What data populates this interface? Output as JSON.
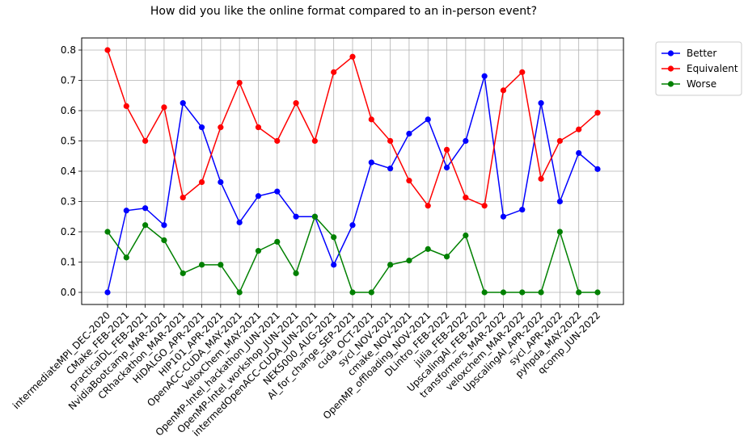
{
  "chart_data": {
    "type": "line",
    "title": "How did you like the online format compared to an in-person event?",
    "xlabel": "",
    "ylabel": "",
    "ylim": [
      -0.04,
      0.84
    ],
    "yticks": [
      "0.0",
      "0.1",
      "0.2",
      "0.3",
      "0.4",
      "0.5",
      "0.6",
      "0.7",
      "0.8"
    ],
    "grid": true,
    "legend_position": "outside-top-right",
    "categories": [
      "intermediateMPI_DEC-2020",
      "CMake_FEB-2021",
      "practicalDL_FEB-2021",
      "NvidiaBootcamp_MAR-2021",
      "CRhackathon_MAR-2021",
      "HiDALGO_APR-2021",
      "HIP101_APR-2021",
      "OpenACC-CUDA_MAY-2021",
      "VeloxChem_MAY-2021",
      "OpenMP-Intel_hackathon_JUN-2021",
      "OpenMP-Intel_workshop_JUN-2021",
      "intermedOpenACC-CUDA_JUN-2021",
      "NEK5000_AUG-2021",
      "AI_for_change_SEP-2021",
      "cuda_OCT-2021",
      "sycl_NOV-2021",
      "cmake_NOV-2021",
      "OpenMP_offloading_NOV-2021",
      "DLintro_FEB-2022",
      "julia_FEB-2022",
      "UpscalingAI_FEB-2022",
      "transformers_MAR-2022",
      "veloxchem_MAR-2022",
      "UpscalingAI_APR-2022",
      "sycl_APR-2022",
      "pyhpda_MAY-2022",
      "qcomp_JUN-2022"
    ],
    "series": [
      {
        "name": "Better",
        "color": "#0000ff",
        "values": [
          0.0,
          0.27,
          0.278,
          0.222,
          0.625,
          0.545,
          0.364,
          0.231,
          0.318,
          0.333,
          0.25,
          0.25,
          0.091,
          0.222,
          0.429,
          0.409,
          0.524,
          0.571,
          0.412,
          0.5,
          0.714,
          0.25,
          0.273,
          0.625,
          0.3,
          0.46,
          0.407
        ]
      },
      {
        "name": "Equivalent",
        "color": "#ff0000",
        "values": [
          0.8,
          0.615,
          0.5,
          0.611,
          0.313,
          0.364,
          0.545,
          0.692,
          0.545,
          0.5,
          0.625,
          0.5,
          0.727,
          0.778,
          0.571,
          0.5,
          0.369,
          0.286,
          0.471,
          0.313,
          0.286,
          0.667,
          0.727,
          0.375,
          0.5,
          0.538,
          0.593
        ]
      },
      {
        "name": "Worse",
        "color": "#008000",
        "values": [
          0.2,
          0.115,
          0.222,
          0.172,
          0.063,
          0.091,
          0.091,
          0.0,
          0.137,
          0.167,
          0.063,
          0.25,
          0.182,
          0.0,
          0.0,
          0.091,
          0.105,
          0.143,
          0.118,
          0.188,
          0.0,
          0.0,
          0.0,
          0.0,
          0.2,
          0.0,
          0.0
        ]
      }
    ]
  }
}
